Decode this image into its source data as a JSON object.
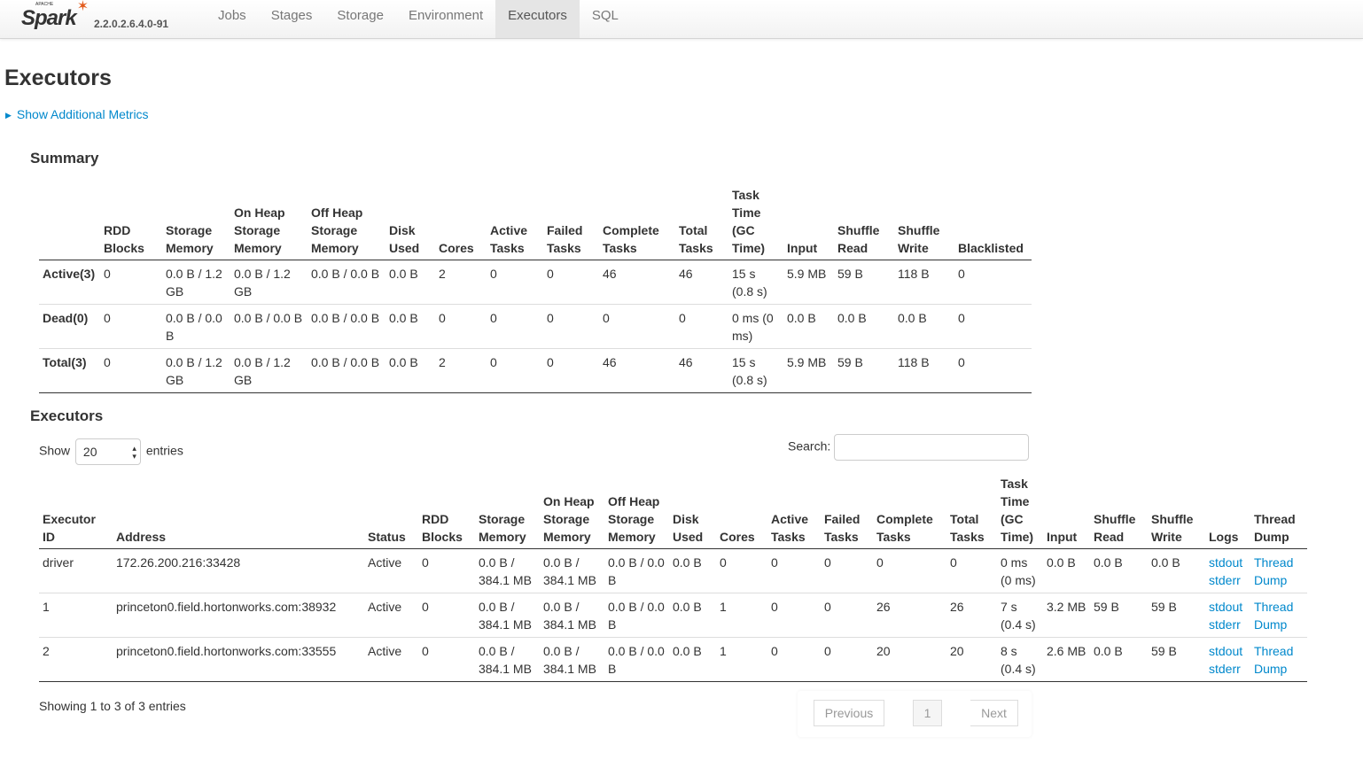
{
  "nav": {
    "logo": "Spark",
    "logo_sub": "APACHE",
    "version": "2.2.0.2.6.4.0-91",
    "tabs": [
      "Jobs",
      "Stages",
      "Storage",
      "Environment",
      "Executors",
      "SQL"
    ],
    "active": "Executors"
  },
  "page_title": "Executors",
  "additional_metrics": "Show Additional Metrics",
  "summary": {
    "title": "Summary",
    "headers": [
      "",
      "RDD Blocks",
      "Storage Memory",
      "On Heap Storage Memory",
      "Off Heap Storage Memory",
      "Disk Used",
      "Cores",
      "Active Tasks",
      "Failed Tasks",
      "Complete Tasks",
      "Total Tasks",
      "Task Time (GC Time)",
      "Input",
      "Shuffle Read",
      "Shuffle Write",
      "Blacklisted"
    ],
    "rows": [
      [
        "Active(3)",
        "0",
        "0.0 B / 1.2 GB",
        "0.0 B / 1.2 GB",
        "0.0 B / 0.0 B",
        "0.0 B",
        "2",
        "0",
        "0",
        "46",
        "46",
        "15 s (0.8 s)",
        "5.9 MB",
        "59 B",
        "118 B",
        "0"
      ],
      [
        "Dead(0)",
        "0",
        "0.0 B / 0.0 B",
        "0.0 B / 0.0 B",
        "0.0 B / 0.0 B",
        "0.0 B",
        "0",
        "0",
        "0",
        "0",
        "0",
        "0 ms (0 ms)",
        "0.0 B",
        "0.0 B",
        "0.0 B",
        "0"
      ],
      [
        "Total(3)",
        "0",
        "0.0 B / 1.2 GB",
        "0.0 B / 1.2 GB",
        "0.0 B / 0.0 B",
        "0.0 B",
        "2",
        "0",
        "0",
        "46",
        "46",
        "15 s (0.8 s)",
        "5.9 MB",
        "59 B",
        "118 B",
        "0"
      ]
    ]
  },
  "executors": {
    "title": "Executors",
    "show_label": "Show",
    "entries_label": "entries",
    "page_size": "20",
    "search_label": "Search:",
    "search_value": "",
    "headers": [
      "Executor ID",
      "Address",
      "Status",
      "RDD Blocks",
      "Storage Memory",
      "On Heap Storage Memory",
      "Off Heap Storage Memory",
      "Disk Used",
      "Cores",
      "Active Tasks",
      "Failed Tasks",
      "Complete Tasks",
      "Total Tasks",
      "Task Time (GC Time)",
      "Input",
      "Shuffle Read",
      "Shuffle Write",
      "Logs",
      "Thread Dump"
    ],
    "rows": [
      [
        "driver",
        "172.26.200.216:33428",
        "Active",
        "0",
        "0.0 B / 384.1 MB",
        "0.0 B / 384.1 MB",
        "0.0 B / 0.0 B",
        "0.0 B",
        "0",
        "0",
        "0",
        "0",
        "0",
        "0 ms (0 ms)",
        "0.0 B",
        "0.0 B",
        "0.0 B"
      ],
      [
        "1",
        "princeton0.field.hortonworks.com:38932",
        "Active",
        "0",
        "0.0 B / 384.1 MB",
        "0.0 B / 384.1 MB",
        "0.0 B / 0.0 B",
        "0.0 B",
        "1",
        "0",
        "0",
        "26",
        "26",
        "7 s (0.4 s)",
        "3.2 MB",
        "59 B",
        "59 B"
      ],
      [
        "2",
        "princeton0.field.hortonworks.com:33555",
        "Active",
        "0",
        "0.0 B / 384.1 MB",
        "0.0 B / 384.1 MB",
        "0.0 B / 0.0 B",
        "0.0 B",
        "1",
        "0",
        "0",
        "20",
        "20",
        "8 s (0.4 s)",
        "2.6 MB",
        "0.0 B",
        "59 B"
      ]
    ],
    "log_links": [
      "stdout",
      "stderr"
    ],
    "thread_dump": "Thread Dump",
    "info": "Showing 1 to 3 of 3 entries",
    "pagination": {
      "previous": "Previous",
      "page": "1",
      "next": "Next"
    }
  }
}
